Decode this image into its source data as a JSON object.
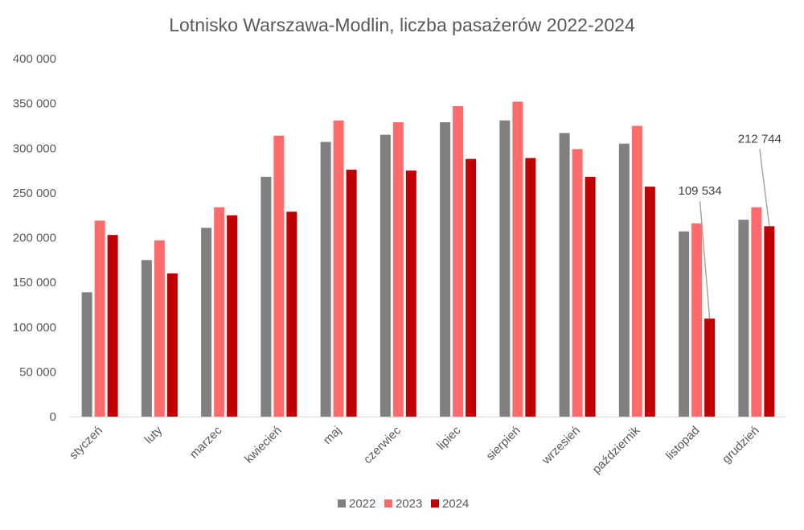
{
  "chart_data": {
    "type": "bar",
    "title": "Lotnisko Warszawa-Modlin, liczba pasażerów 2022-2024",
    "xlabel": "",
    "ylabel": "",
    "ylim": [
      0,
      400000
    ],
    "yticks": [
      0,
      50000,
      100000,
      150000,
      200000,
      250000,
      300000,
      350000,
      400000
    ],
    "ytick_labels": [
      "0",
      "50 000",
      "100 000",
      "150 000",
      "200 000",
      "250 000",
      "300 000",
      "350 000",
      "400 000"
    ],
    "categories": [
      "styczeń",
      "luty",
      "marzec",
      "kwiecień",
      "maj",
      "czerwiec",
      "lipiec",
      "sierpień",
      "wrzesień",
      "październik",
      "listopad",
      "grudzień"
    ],
    "series": [
      {
        "name": "2022",
        "color": "#808080",
        "values": [
          139000,
          175000,
          211000,
          268000,
          307000,
          315000,
          329000,
          331000,
          317000,
          305000,
          207000,
          220000
        ]
      },
      {
        "name": "2023",
        "color": "#ff6b6b",
        "values": [
          219000,
          197000,
          234000,
          314000,
          331000,
          329000,
          347000,
          352000,
          299000,
          325000,
          216000,
          234000
        ]
      },
      {
        "name": "2024",
        "color": "#c00000",
        "values": [
          203000,
          160000,
          225000,
          229000,
          276000,
          275000,
          288000,
          289000,
          268000,
          257000,
          109534,
          212744
        ]
      }
    ],
    "annotations": [
      {
        "text": "109 534",
        "category": "listopad",
        "series": "2024"
      },
      {
        "text": "212 744",
        "category": "grudzień",
        "series": "2024"
      }
    ],
    "grid": false,
    "legend_position": "bottom"
  }
}
